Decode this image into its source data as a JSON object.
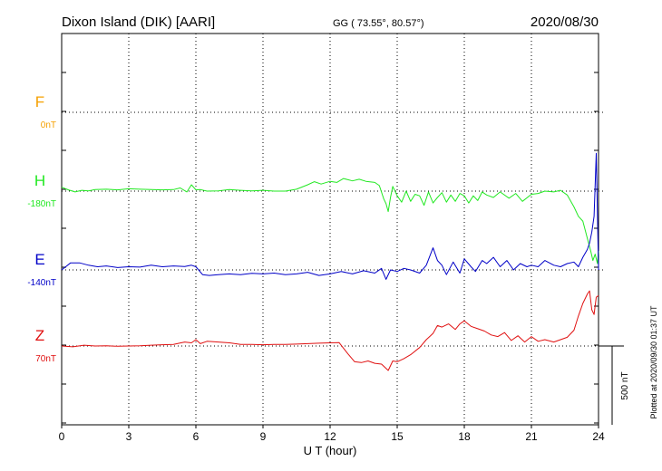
{
  "header": {
    "station": "Dixon Island (DIK)  [AARI]",
    "coords": "GG ( 73.55°,  80.57°)",
    "date": "2020/08/30"
  },
  "footer": {
    "plotted": "Plotted at 2020/09/30 01:37 UT"
  },
  "chart_data": {
    "type": "line",
    "title": "",
    "xlabel": "U T (hour)",
    "ylabel": "",
    "xlim": [
      0,
      24
    ],
    "x_ticks": [
      "0",
      "3",
      "6",
      "9",
      "12",
      "15",
      "18",
      "21",
      "24"
    ],
    "grid": true,
    "scale_bar": {
      "label": "500 nT",
      "value": 500
    },
    "series": [
      {
        "name": "F",
        "baseline_label": "0nT",
        "baseline": 0,
        "color": "#f5a000",
        "x": [],
        "y": []
      },
      {
        "name": "H",
        "baseline_label": "-180nT",
        "baseline": -180,
        "color": "#22e822",
        "x": [
          0,
          0.3,
          0.6,
          0.9,
          1.2,
          1.5,
          2,
          2.5,
          3,
          3.5,
          4,
          4.5,
          5,
          5.3,
          5.6,
          5.8,
          6,
          6.2,
          6.5,
          7,
          7.5,
          8,
          8.5,
          9,
          9.5,
          10,
          10.5,
          11,
          11.3,
          11.6,
          12,
          12.3,
          12.6,
          13,
          13.3,
          13.6,
          14,
          14.2,
          14.4,
          14.5,
          14.6,
          14.7,
          14.8,
          15,
          15.2,
          15.4,
          15.6,
          15.8,
          16,
          16.2,
          16.4,
          16.6,
          16.8,
          17,
          17.2,
          17.4,
          17.6,
          17.8,
          18,
          18.2,
          18.4,
          18.6,
          18.8,
          19,
          19.3,
          19.6,
          20,
          20.3,
          20.6,
          21,
          21.3,
          21.6,
          22,
          22.3,
          22.6,
          22.9,
          23.1,
          23.3,
          23.5,
          23.65,
          23.75,
          23.85,
          23.95,
          24
        ],
        "y": [
          -155,
          -172,
          -185,
          -175,
          -178,
          -170,
          -168,
          -172,
          -165,
          -168,
          -170,
          -172,
          -170,
          -160,
          -185,
          -140,
          -172,
          -170,
          -180,
          -178,
          -170,
          -175,
          -178,
          -175,
          -180,
          -180,
          -168,
          -140,
          -120,
          -135,
          -118,
          -125,
          -100,
          -115,
          -105,
          -118,
          -125,
          -145,
          -230,
          -260,
          -310,
          -220,
          -150,
          -210,
          -250,
          -180,
          -245,
          -200,
          -210,
          -270,
          -185,
          -255,
          -220,
          -190,
          -250,
          -205,
          -245,
          -195,
          -210,
          -255,
          -210,
          -240,
          -185,
          -205,
          -220,
          -185,
          -225,
          -195,
          -245,
          -200,
          -195,
          -180,
          -185,
          -175,
          -205,
          -280,
          -340,
          -370,
          -480,
          -560,
          -620,
          -580,
          -640,
          -560
        ]
      },
      {
        "name": "E",
        "baseline_label": "-140nT",
        "baseline": -140,
        "color": "#0000c8",
        "x": [
          0,
          0.4,
          0.8,
          1.2,
          1.6,
          2,
          2.5,
          3,
          3.5,
          4,
          4.5,
          5,
          5.5,
          5.8,
          6,
          6.3,
          6.6,
          7,
          7.5,
          8,
          8.5,
          9,
          9.5,
          10,
          10.5,
          11,
          11.5,
          12,
          12.5,
          13,
          13.5,
          14,
          14.3,
          14.5,
          14.7,
          15,
          15.3,
          15.6,
          16,
          16.3,
          16.6,
          16.8,
          17,
          17.2,
          17.5,
          17.8,
          18,
          18.3,
          18.5,
          18.8,
          19,
          19.3,
          19.6,
          19.9,
          20.2,
          20.5,
          20.8,
          21,
          21.3,
          21.6,
          22,
          22.3,
          22.6,
          22.9,
          23.1,
          23.3,
          23.5,
          23.6,
          23.7,
          23.8,
          23.9,
          24
        ],
        "y": [
          -140,
          -95,
          -95,
          -110,
          -120,
          -115,
          -125,
          -120,
          -122,
          -110,
          -120,
          -115,
          -118,
          -110,
          -120,
          -170,
          -175,
          -170,
          -165,
          -170,
          -162,
          -165,
          -160,
          -170,
          -165,
          -155,
          -175,
          -165,
          -150,
          -165,
          -145,
          -160,
          -130,
          -200,
          -140,
          -150,
          -130,
          -140,
          -160,
          -110,
          0,
          -80,
          -110,
          -170,
          -90,
          -160,
          -70,
          -120,
          -150,
          -80,
          -100,
          -60,
          -120,
          -80,
          -140,
          -100,
          -120,
          -110,
          -120,
          -80,
          -110,
          -120,
          -100,
          -90,
          -120,
          -60,
          -10,
          30,
          100,
          200,
          600,
          -140
        ]
      },
      {
        "name": "Z",
        "baseline_label": "70nT",
        "baseline": 70,
        "color": "#e01010",
        "x": [
          0,
          0.5,
          1,
          1.5,
          2,
          2.5,
          3,
          3.5,
          4,
          4.5,
          5,
          5.5,
          5.8,
          6,
          6.2,
          6.5,
          7,
          7.5,
          8,
          8.5,
          9,
          9.5,
          10,
          10.5,
          11,
          11.5,
          12,
          12.4,
          12.8,
          13.1,
          13.4,
          13.7,
          14,
          14.3,
          14.6,
          14.8,
          15,
          15.3,
          15.6,
          16,
          16.3,
          16.6,
          16.8,
          17,
          17.3,
          17.6,
          17.8,
          18,
          18.3,
          18.6,
          18.9,
          19.2,
          19.5,
          19.8,
          20.1,
          20.4,
          20.7,
          21,
          21.3,
          21.6,
          22,
          22.3,
          22.6,
          22.9,
          23.1,
          23.3,
          23.5,
          23.6,
          23.7,
          23.8,
          23.9,
          24
        ],
        "y": [
          70,
          65,
          75,
          70,
          72,
          68,
          70,
          72,
          75,
          78,
          80,
          95,
          90,
          110,
          85,
          100,
          95,
          90,
          80,
          80,
          78,
          80,
          80,
          82,
          85,
          88,
          90,
          92,
          20,
          -30,
          -35,
          -25,
          -40,
          -45,
          -85,
          -25,
          -30,
          -10,
          15,
          60,
          110,
          150,
          200,
          190,
          210,
          175,
          210,
          230,
          195,
          180,
          165,
          140,
          130,
          155,
          105,
          135,
          95,
          130,
          100,
          110,
          95,
          110,
          125,
          170,
          260,
          340,
          400,
          420,
          300,
          270,
          380,
          390
        ]
      }
    ]
  }
}
